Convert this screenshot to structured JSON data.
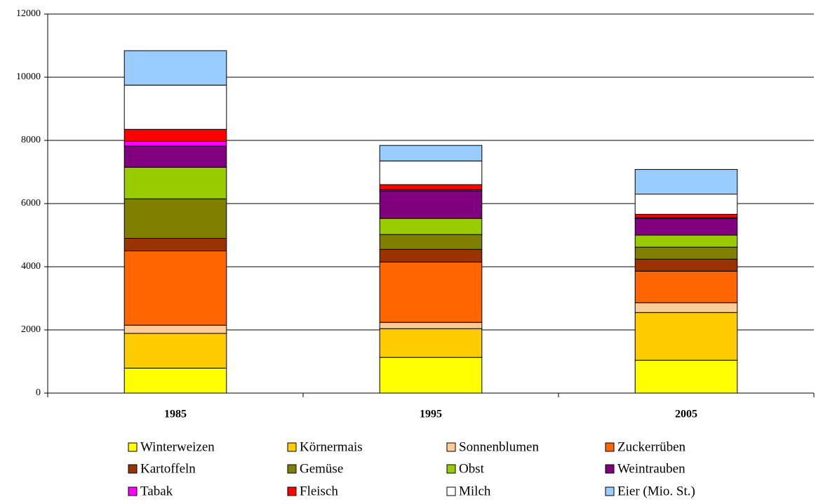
{
  "chart_data": {
    "type": "stacked-bar",
    "categories": [
      "1985",
      "1995",
      "2005"
    ],
    "series": [
      {
        "name": "Winterweizen",
        "color": "#ffff00",
        "values": [
          790,
          1130,
          1040
        ]
      },
      {
        "name": "Körnermais",
        "color": "#ffcc00",
        "values": [
          1100,
          910,
          1510
        ]
      },
      {
        "name": "Sonnenblumen",
        "color": "#ffcc99",
        "values": [
          260,
          200,
          310
        ]
      },
      {
        "name": "Zuckerrüben",
        "color": "#ff6600",
        "values": [
          2350,
          1910,
          1000
        ]
      },
      {
        "name": "Kartoffeln",
        "color": "#993300",
        "values": [
          400,
          400,
          380
        ]
      },
      {
        "name": "Gemüse",
        "color": "#808000",
        "values": [
          1250,
          470,
          380
        ]
      },
      {
        "name": "Obst",
        "color": "#99cc00",
        "values": [
          1000,
          510,
          380
        ]
      },
      {
        "name": "Weintrauben",
        "color": "#800080",
        "values": [
          670,
          870,
          530
        ]
      },
      {
        "name": "Tabak",
        "color": "#ff00ff",
        "values": [
          150,
          40,
          20
        ]
      },
      {
        "name": "Fleisch",
        "color": "#ff0000",
        "values": [
          380,
          160,
          110
        ]
      },
      {
        "name": "Milch",
        "color": "#ffffff",
        "values": [
          1400,
          750,
          640
        ]
      },
      {
        "name": "Eier (Mio. St.)",
        "color": "#99ccff",
        "values": [
          1090,
          490,
          780
        ]
      }
    ],
    "ylim": [
      0,
      12000
    ],
    "yticks": [
      0,
      2000,
      4000,
      6000,
      8000,
      10000,
      12000
    ],
    "grid": true
  }
}
